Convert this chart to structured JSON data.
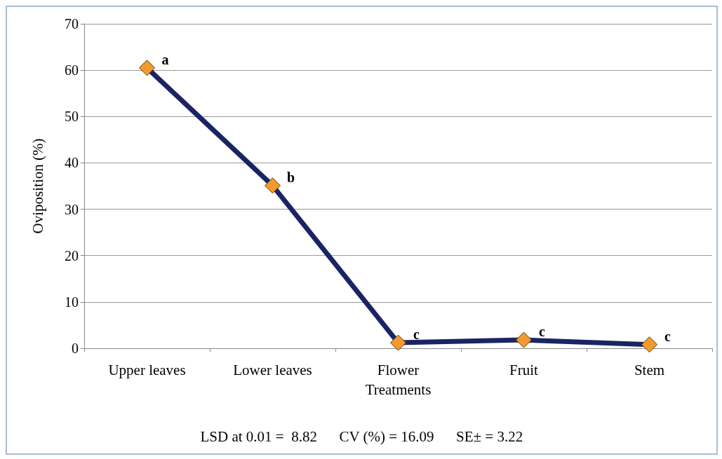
{
  "chart_data": {
    "type": "line",
    "xlabel": "Treatments",
    "ylabel": "Oviposition (%)",
    "categories": [
      "Upper leaves",
      "Lower leaves",
      "Flower",
      "Fruit",
      "Stem"
    ],
    "series": [
      {
        "color": "#1b2463",
        "values": [
          60.5,
          35.1,
          1.2,
          1.8,
          0.8
        ]
      }
    ],
    "marker": "diamond",
    "line_style": "solid",
    "grid": "y",
    "ylim": [
      0,
      70
    ],
    "yticks": [
      0,
      10,
      20,
      30,
      40,
      50,
      60,
      70
    ],
    "annotations": [
      {
        "text": "a",
        "x": "Upper leaves",
        "y": 60.5
      },
      {
        "text": "b",
        "x": "Lower leaves",
        "y": 35.1
      },
      {
        "text": "c",
        "x": "Flower",
        "y": 1.2
      },
      {
        "text": "c",
        "x": "Fruit",
        "y": 1.8
      },
      {
        "text": "c",
        "x": "Stem",
        "y": 0.8
      },
      "LSD at 0.01 =  8.82      CV (%) = 16.09      SE± = 3.22"
    ]
  }
}
